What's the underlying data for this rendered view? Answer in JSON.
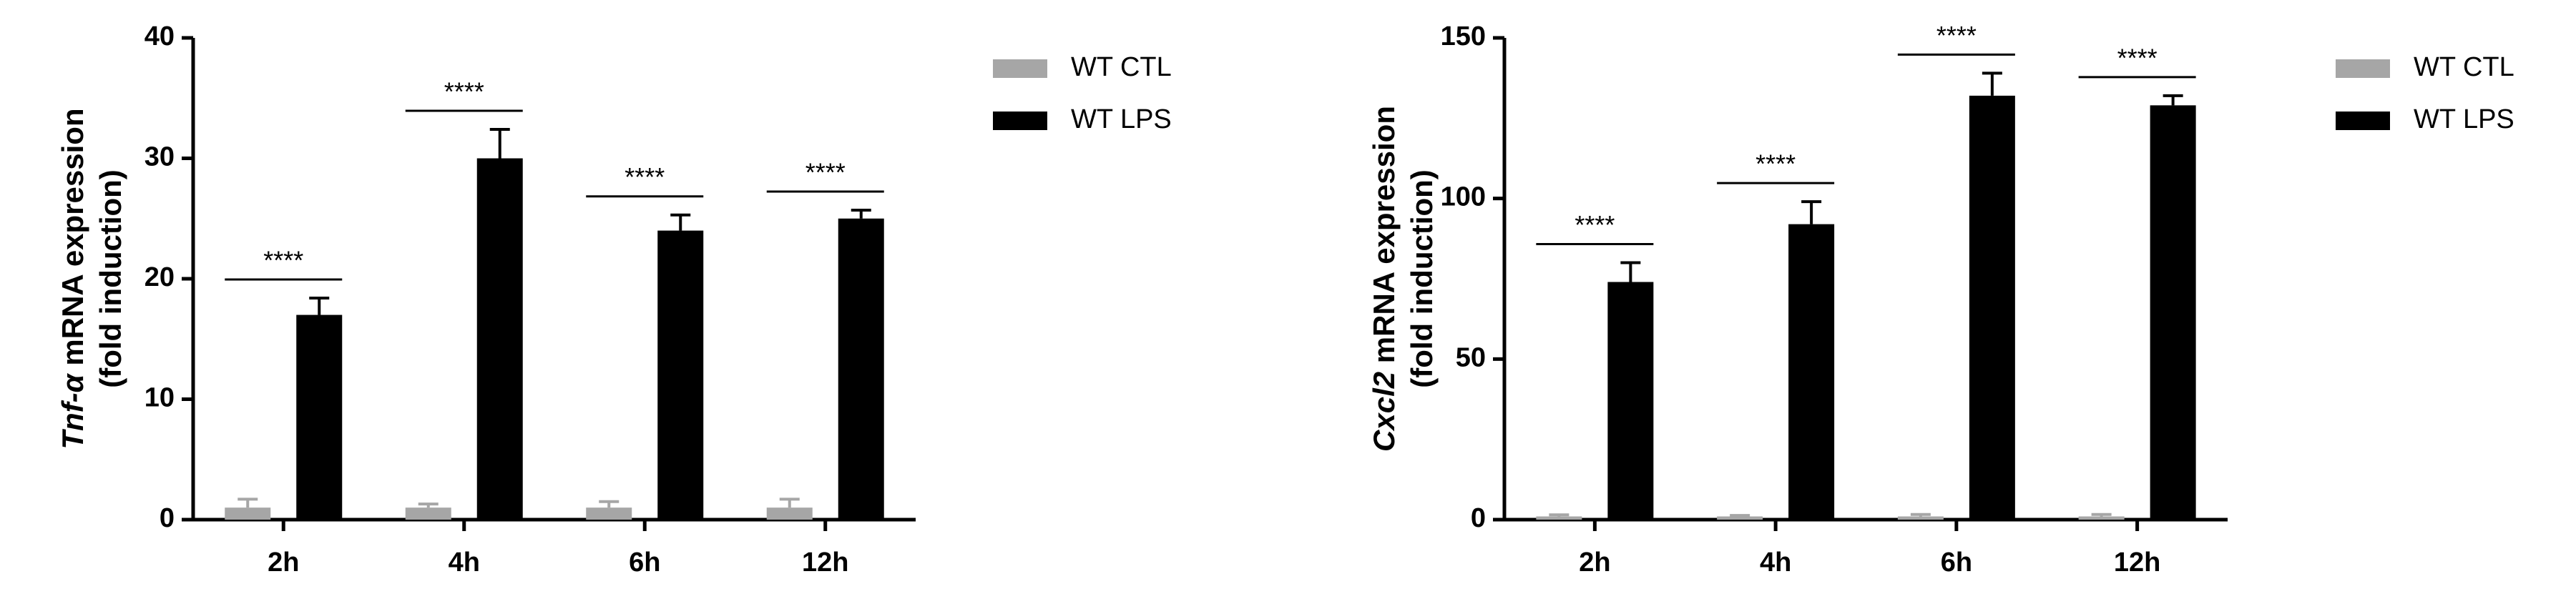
{
  "chart_data": [
    {
      "type": "bar",
      "y_label_italic": "Tnf-α",
      "y_label_rest": "mRNA expression",
      "y_label_line2": "(fold induction)",
      "categories": [
        "2h",
        "4h",
        "6h",
        "12h"
      ],
      "series": [
        {
          "name": "WT CTL",
          "color": "#a6a6a6",
          "values": [
            1,
            1,
            1,
            1
          ],
          "errors": [
            0.7,
            0.3,
            0.5,
            0.7
          ]
        },
        {
          "name": "WT LPS",
          "color": "#000000",
          "values": [
            17,
            30,
            24,
            25
          ],
          "errors": [
            1.4,
            2.4,
            1.3,
            0.7
          ]
        }
      ],
      "annotations": [
        "****",
        "****",
        "****",
        "****"
      ],
      "ylim": [
        0,
        40
      ],
      "yticks": [
        0,
        10,
        20,
        30,
        40
      ],
      "grid": false,
      "legend": "right"
    },
    {
      "type": "bar",
      "y_label_italic": "Cxcl2",
      "y_label_rest": "mRNA expression",
      "y_label_line2": "(fold induction)",
      "categories": [
        "2h",
        "4h",
        "6h",
        "12h"
      ],
      "series": [
        {
          "name": "WT CTL",
          "color": "#a6a6a6",
          "values": [
            1,
            1,
            1,
            1
          ],
          "errors": [
            0.5,
            0.3,
            0.6,
            0.6
          ]
        },
        {
          "name": "WT LPS",
          "color": "#000000",
          "values": [
            74,
            92,
            132,
            129
          ],
          "errors": [
            6,
            7,
            7,
            3
          ]
        }
      ],
      "annotations": [
        "****",
        "****",
        "****",
        "****"
      ],
      "ylim": [
        0,
        150
      ],
      "yticks": [
        0,
        50,
        100,
        150
      ],
      "grid": false,
      "legend": "right"
    }
  ]
}
